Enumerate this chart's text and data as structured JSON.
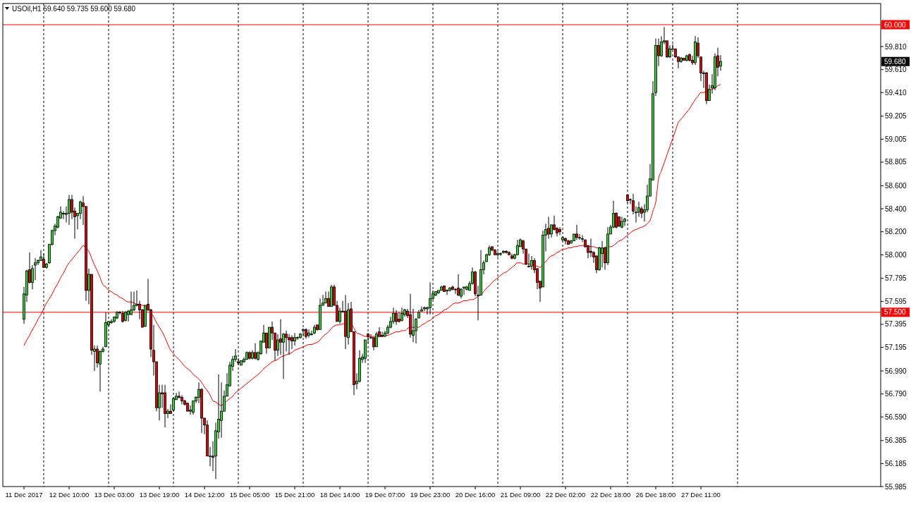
{
  "chart_data": {
    "type": "candlestick",
    "title": "USOil,H1 59.640 59.735 59.600 59.680",
    "categories": [
      "11 Dec 2017",
      null,
      null,
      null,
      null,
      null,
      null,
      null,
      null,
      null,
      null,
      null,
      null,
      null,
      null,
      null,
      "12 Dec 10:00",
      null,
      null,
      null,
      null,
      null,
      null,
      null,
      null,
      null,
      null,
      null,
      null,
      null,
      null,
      null,
      "13 Dec 03:00",
      null,
      null,
      null,
      null,
      null,
      null,
      null,
      null,
      null,
      null,
      null,
      null,
      null,
      null,
      null,
      "13 Dec 19:00",
      null,
      null,
      null,
      null,
      null,
      null,
      null,
      null,
      null,
      null,
      null,
      null,
      null,
      null,
      null,
      "14 Dec 12:00",
      null,
      null,
      null,
      null,
      null,
      null,
      null,
      null,
      null,
      null,
      null,
      null,
      null,
      null,
      null,
      "15 Dec 05:00",
      null,
      null,
      null,
      null,
      null,
      null,
      null,
      null,
      null,
      null,
      null,
      null,
      null,
      null,
      null,
      "15 Dec 21:00",
      null,
      null,
      null,
      null,
      null,
      null,
      null,
      null,
      null,
      null,
      null,
      null,
      null,
      null,
      null,
      "18 Dec 14:00",
      null,
      null,
      null,
      null,
      null,
      null,
      null,
      null,
      null,
      null,
      null,
      null,
      null,
      null,
      null,
      "19 Dec 07:00",
      null,
      null,
      null,
      null,
      null,
      null,
      null,
      null,
      null,
      null,
      null,
      null,
      null,
      null,
      null,
      "19 Dec 23:00",
      null,
      null,
      null,
      null,
      null,
      null,
      null,
      null,
      null,
      null,
      null,
      null,
      null,
      null,
      null,
      "20 Dec 16:00",
      null,
      null,
      null,
      null,
      null,
      null,
      null,
      null,
      null,
      null,
      null,
      null,
      null,
      null,
      null,
      "21 Dec 09:00",
      null,
      null,
      null,
      null,
      null,
      null,
      null,
      null,
      null,
      null,
      null,
      null,
      null,
      null,
      null,
      "22 Dec 02:00",
      null,
      null,
      null,
      null,
      null,
      null,
      null,
      null,
      null,
      null,
      null,
      null,
      null,
      null,
      null,
      "22 Dec 18:00",
      null,
      null,
      null,
      null,
      null,
      null,
      null,
      null,
      null,
      null,
      null,
      null,
      null,
      null,
      null,
      "26 Dec 18:00",
      null,
      null,
      null,
      null,
      null,
      null,
      null,
      null,
      null,
      null,
      null,
      null,
      null,
      null,
      null,
      "27 Dec 11:00",
      null,
      null,
      null,
      null,
      null,
      null,
      null
    ],
    "ohlc": [
      [
        57.44,
        57.72,
        57.4,
        57.66
      ],
      [
        57.65,
        57.87,
        57.59,
        57.86
      ],
      [
        57.87,
        58.02,
        57.75,
        57.76
      ],
      [
        57.76,
        57.91,
        57.7,
        57.88
      ],
      [
        57.91,
        57.97,
        57.78,
        57.93
      ],
      [
        57.93,
        57.96,
        57.91,
        57.95
      ],
      [
        57.95,
        58.04,
        57.95,
        57.98
      ],
      [
        57.96,
        58.01,
        57.89,
        57.89
      ],
      [
        57.89,
        57.93,
        57.88,
        57.92
      ],
      [
        57.93,
        58.09,
        57.92,
        58.09
      ],
      [
        58.09,
        58.22,
        58.08,
        58.21
      ],
      [
        58.21,
        58.27,
        58.17,
        58.25
      ],
      [
        58.24,
        58.34,
        58.23,
        58.33
      ],
      [
        58.32,
        58.42,
        58.31,
        58.37
      ],
      [
        58.36,
        58.38,
        58.31,
        58.36
      ],
      [
        58.35,
        58.42,
        58.28,
        58.36
      ],
      [
        58.36,
        58.52,
        58.26,
        58.48
      ],
      [
        58.48,
        58.52,
        58.31,
        58.37
      ],
      [
        58.38,
        58.41,
        58.14,
        58.33
      ],
      [
        58.34,
        58.36,
        58.22,
        58.36
      ],
      [
        58.36,
        58.47,
        58.31,
        58.46
      ],
      [
        58.45,
        58.51,
        58.26,
        58.42
      ],
      [
        58.42,
        58.42,
        57.6,
        57.69
      ],
      [
        57.69,
        57.88,
        57.57,
        57.83
      ],
      [
        57.83,
        57.83,
        57.13,
        57.17
      ],
      [
        57.16,
        57.21,
        56.99,
        57.18
      ],
      [
        57.18,
        57.21,
        57.02,
        57.06
      ],
      [
        57.05,
        57.17,
        56.81,
        57.16
      ],
      [
        57.16,
        57.2,
        57.15,
        57.18
      ],
      [
        57.2,
        57.5,
        57.2,
        57.41
      ],
      [
        57.39,
        57.42,
        57.38,
        57.42
      ],
      [
        57.41,
        57.44,
        57.4,
        57.42
      ],
      [
        57.42,
        57.46,
        57.41,
        57.46
      ],
      [
        57.45,
        57.51,
        57.44,
        57.5
      ],
      [
        57.5,
        57.51,
        57.48,
        57.5
      ],
      [
        57.49,
        57.51,
        57.41,
        57.42
      ],
      [
        57.43,
        57.51,
        57.42,
        57.5
      ],
      [
        57.48,
        57.52,
        57.42,
        57.51
      ],
      [
        57.48,
        57.68,
        57.48,
        57.52
      ],
      [
        57.52,
        57.68,
        57.51,
        57.56
      ],
      [
        57.56,
        57.69,
        57.55,
        57.57
      ],
      [
        57.57,
        57.6,
        57.44,
        57.52
      ],
      [
        57.52,
        57.53,
        57.37,
        57.37
      ],
      [
        57.38,
        57.56,
        57.37,
        57.56
      ],
      [
        57.57,
        57.79,
        57.51,
        57.52
      ],
      [
        57.52,
        57.53,
        57.11,
        57.18
      ],
      [
        57.17,
        57.39,
        56.95,
        57.07
      ],
      [
        57.07,
        57.07,
        56.64,
        56.67
      ],
      [
        56.67,
        56.87,
        56.56,
        56.8
      ],
      [
        56.8,
        56.87,
        56.67,
        56.79
      ],
      [
        56.8,
        56.87,
        56.5,
        56.62
      ],
      [
        56.62,
        56.66,
        56.58,
        56.64
      ],
      [
        56.64,
        56.7,
        56.62,
        56.62
      ],
      [
        56.65,
        56.76,
        56.64,
        56.75
      ],
      [
        56.74,
        56.8,
        56.74,
        56.77
      ],
      [
        56.77,
        56.81,
        56.75,
        56.76
      ],
      [
        56.76,
        56.78,
        56.7,
        56.73
      ],
      [
        56.73,
        56.74,
        56.69,
        56.7
      ],
      [
        56.71,
        56.71,
        56.64,
        56.64
      ],
      [
        56.64,
        56.69,
        56.61,
        56.65
      ],
      [
        56.63,
        56.73,
        56.61,
        56.73
      ],
      [
        56.73,
        56.77,
        56.71,
        56.76
      ],
      [
        56.76,
        56.89,
        56.71,
        56.83
      ],
      [
        56.83,
        56.84,
        56.45,
        56.58
      ],
      [
        56.58,
        56.58,
        56.44,
        56.52
      ],
      [
        56.52,
        56.56,
        56.25,
        56.25
      ],
      [
        56.25,
        56.33,
        56.16,
        56.25
      ],
      [
        56.25,
        56.38,
        56.12,
        56.24
      ],
      [
        56.25,
        56.54,
        56.05,
        56.47
      ],
      [
        56.46,
        56.96,
        56.4,
        56.57
      ],
      [
        56.56,
        56.89,
        56.41,
        56.64
      ],
      [
        56.64,
        56.82,
        56.64,
        56.77
      ],
      [
        56.77,
        56.97,
        56.77,
        56.87
      ],
      [
        56.86,
        57.07,
        56.86,
        57.04
      ],
      [
        57.03,
        57.12,
        56.99,
        57.09
      ],
      [
        57.09,
        57.18,
        57.07,
        57.12
      ],
      [
        57.07,
        57.1,
        57.04,
        57.06
      ],
      [
        57.04,
        57.08,
        57.04,
        57.08
      ],
      [
        57.07,
        57.11,
        57.06,
        57.09
      ],
      [
        57.09,
        57.16,
        57.09,
        57.15
      ],
      [
        57.15,
        57.16,
        57.09,
        57.1
      ],
      [
        57.1,
        57.17,
        57.09,
        57.15
      ],
      [
        57.15,
        57.23,
        57.09,
        57.1
      ],
      [
        57.09,
        57.16,
        57.08,
        57.15
      ],
      [
        57.14,
        57.25,
        57.13,
        57.25
      ],
      [
        57.24,
        57.39,
        57.24,
        57.32
      ],
      [
        57.32,
        57.32,
        57.14,
        57.19
      ],
      [
        57.19,
        57.37,
        57.19,
        57.37
      ],
      [
        57.37,
        57.42,
        57.26,
        57.32
      ],
      [
        57.32,
        57.32,
        57.08,
        57.17
      ],
      [
        57.17,
        57.31,
        57.12,
        57.26
      ],
      [
        57.27,
        57.44,
        57.13,
        57.24
      ],
      [
        57.24,
        57.32,
        56.92,
        57.31
      ],
      [
        57.31,
        57.34,
        57.16,
        57.28
      ],
      [
        57.28,
        57.31,
        57.13,
        57.26
      ],
      [
        57.28,
        57.3,
        57.18,
        57.25
      ],
      [
        57.25,
        57.32,
        57.21,
        57.28
      ],
      [
        57.28,
        57.29,
        57.26,
        57.28
      ],
      [
        57.28,
        57.32,
        57.27,
        57.31
      ],
      [
        57.34,
        57.36,
        57.29,
        57.35
      ],
      [
        57.35,
        57.36,
        57.27,
        57.29
      ],
      [
        57.3,
        57.35,
        57.28,
        57.32
      ],
      [
        57.31,
        57.34,
        57.3,
        57.31
      ],
      [
        57.32,
        57.39,
        57.31,
        57.37
      ],
      [
        57.39,
        57.39,
        57.34,
        57.35
      ],
      [
        57.35,
        57.62,
        57.35,
        57.56
      ],
      [
        57.56,
        57.65,
        57.56,
        57.58
      ],
      [
        57.58,
        57.68,
        57.58,
        57.62
      ],
      [
        57.62,
        57.68,
        57.55,
        57.55
      ],
      [
        57.55,
        57.74,
        57.55,
        57.72
      ],
      [
        57.72,
        57.74,
        57.56,
        57.56
      ],
      [
        57.56,
        57.6,
        57.42,
        57.42
      ],
      [
        57.42,
        57.54,
        57.4,
        57.51
      ],
      [
        57.51,
        57.6,
        57.5,
        57.51
      ],
      [
        57.51,
        57.65,
        57.18,
        57.29
      ],
      [
        57.28,
        57.58,
        57.22,
        57.52
      ],
      [
        57.53,
        57.59,
        57.33,
        57.33
      ],
      [
        57.33,
        57.33,
        56.78,
        56.87
      ],
      [
        56.88,
        56.97,
        56.83,
        56.9
      ],
      [
        56.9,
        57.17,
        56.89,
        57.1
      ],
      [
        57.09,
        57.14,
        57.06,
        57.11
      ],
      [
        57.1,
        57.26,
        57.06,
        57.26
      ],
      [
        57.31,
        57.32,
        57.23,
        57.29
      ],
      [
        57.28,
        57.31,
        57.27,
        57.28
      ],
      [
        57.28,
        57.28,
        57.17,
        57.2
      ],
      [
        57.2,
        57.33,
        57.2,
        57.31
      ],
      [
        57.33,
        57.37,
        57.29,
        57.29
      ],
      [
        57.3,
        57.33,
        57.29,
        57.29
      ],
      [
        57.29,
        57.34,
        57.29,
        57.32
      ],
      [
        57.32,
        57.39,
        57.31,
        57.37
      ],
      [
        57.37,
        57.46,
        57.36,
        57.42
      ],
      [
        57.42,
        57.54,
        57.4,
        57.49
      ],
      [
        57.49,
        57.52,
        57.39,
        57.42
      ],
      [
        57.44,
        57.5,
        57.41,
        57.42
      ],
      [
        57.43,
        57.54,
        57.42,
        57.49
      ],
      [
        57.48,
        57.53,
        57.46,
        57.52
      ],
      [
        57.51,
        57.53,
        57.45,
        57.47
      ],
      [
        57.48,
        57.66,
        57.28,
        57.31
      ],
      [
        57.3,
        57.53,
        57.24,
        57.34
      ],
      [
        57.34,
        57.45,
        57.23,
        57.44
      ],
      [
        57.45,
        57.52,
        57.45,
        57.5
      ],
      [
        57.51,
        57.55,
        57.51,
        57.52
      ],
      [
        57.53,
        57.55,
        57.51,
        57.54
      ],
      [
        57.53,
        57.55,
        57.48,
        57.54
      ],
      [
        57.54,
        57.76,
        57.48,
        57.62
      ],
      [
        57.62,
        57.69,
        57.61,
        57.66
      ],
      [
        57.65,
        57.68,
        57.64,
        57.68
      ],
      [
        57.67,
        57.69,
        57.66,
        57.69
      ],
      [
        57.69,
        57.73,
        57.69,
        57.72
      ],
      [
        57.73,
        57.73,
        57.68,
        57.68
      ],
      [
        57.69,
        57.7,
        57.65,
        57.69
      ],
      [
        57.69,
        57.72,
        57.68,
        57.71
      ],
      [
        57.72,
        57.73,
        57.69,
        57.7
      ],
      [
        57.7,
        57.71,
        57.66,
        57.7
      ],
      [
        57.71,
        57.83,
        57.64,
        57.65
      ],
      [
        57.64,
        57.71,
        57.62,
        57.7
      ],
      [
        57.71,
        57.72,
        57.65,
        57.72
      ],
      [
        57.7,
        57.73,
        57.69,
        57.72
      ],
      [
        57.69,
        57.77,
        57.69,
        57.75
      ],
      [
        57.75,
        57.89,
        57.74,
        57.85
      ],
      [
        57.85,
        57.86,
        57.64,
        57.66
      ],
      [
        57.65,
        57.73,
        57.43,
        57.65
      ],
      [
        57.65,
        58.04,
        57.65,
        57.87
      ],
      [
        57.87,
        57.95,
        57.83,
        57.93
      ],
      [
        57.94,
        58.01,
        57.94,
        58.0
      ],
      [
        58.0,
        58.08,
        57.99,
        58.06
      ],
      [
        58.07,
        58.07,
        58.03,
        58.04
      ],
      [
        58.04,
        58.05,
        58.0,
        58.0
      ],
      [
        58.0,
        58.03,
        57.98,
        58.01
      ],
      [
        58.01,
        58.02,
        57.99,
        58.01
      ],
      [
        58.02,
        58.04,
        58.01,
        58.03
      ],
      [
        58.03,
        58.04,
        58.01,
        58.02
      ],
      [
        58.02,
        58.03,
        58.0,
        58.0
      ],
      [
        57.99,
        58.01,
        57.96,
        57.97
      ],
      [
        57.97,
        58.01,
        57.96,
        58.0
      ],
      [
        58.0,
        58.13,
        58.0,
        58.08
      ],
      [
        58.07,
        58.14,
        58.07,
        58.13
      ],
      [
        58.12,
        58.13,
        58.01,
        58.05
      ],
      [
        58.05,
        58.05,
        57.91,
        57.92
      ],
      [
        57.9,
        58.01,
        57.89,
        57.9
      ],
      [
        57.9,
        57.99,
        57.87,
        57.95
      ],
      [
        57.95,
        57.97,
        57.84,
        57.87
      ],
      [
        57.88,
        57.88,
        57.7,
        57.76
      ],
      [
        57.77,
        57.77,
        57.59,
        57.71
      ],
      [
        57.72,
        58.21,
        57.72,
        58.17
      ],
      [
        58.17,
        58.27,
        58.03,
        58.22
      ],
      [
        58.23,
        58.33,
        58.14,
        58.18
      ],
      [
        58.18,
        58.26,
        58.15,
        58.26
      ],
      [
        58.26,
        58.34,
        58.21,
        58.22
      ],
      [
        58.23,
        58.24,
        58.16,
        58.19
      ],
      [
        58.22,
        58.24,
        58.17,
        58.2
      ],
      [
        58.13,
        58.16,
        58.12,
        58.15
      ],
      [
        58.14,
        58.15,
        58.09,
        58.12
      ],
      [
        58.12,
        58.13,
        58.09,
        58.09
      ],
      [
        58.1,
        58.13,
        58.1,
        58.12
      ],
      [
        58.12,
        58.18,
        58.12,
        58.18
      ],
      [
        58.18,
        58.26,
        58.13,
        58.15
      ],
      [
        58.15,
        58.18,
        58.13,
        58.15
      ],
      [
        58.14,
        58.17,
        58.11,
        58.14
      ],
      [
        58.13,
        58.13,
        58.06,
        58.07
      ],
      [
        58.08,
        58.08,
        57.97,
        58.02
      ],
      [
        58.03,
        58.14,
        57.98,
        58.02
      ],
      [
        58.02,
        58.03,
        57.93,
        57.98
      ],
      [
        57.99,
        57.99,
        57.84,
        57.87
      ],
      [
        57.87,
        58.07,
        57.86,
        58.06
      ],
      [
        58.01,
        58.12,
        57.89,
        58.06
      ],
      [
        58.06,
        58.07,
        57.87,
        57.93
      ],
      [
        57.93,
        58.24,
        57.91,
        58.18
      ],
      [
        58.18,
        58.26,
        58.18,
        58.24
      ],
      [
        58.24,
        58.47,
        58.23,
        58.36
      ],
      [
        58.36,
        58.37,
        58.23,
        58.24
      ],
      [
        58.33,
        58.33,
        58.24,
        58.25
      ],
      [
        58.24,
        58.33,
        58.23,
        58.29
      ],
      [
        58.29,
        58.32,
        58.25,
        58.31
      ],
      [
        58.52,
        58.52,
        58.45,
        58.47
      ],
      [
        58.48,
        58.49,
        58.44,
        58.48
      ],
      [
        58.47,
        58.53,
        58.35,
        58.38
      ],
      [
        58.37,
        58.42,
        58.28,
        58.37
      ],
      [
        58.37,
        58.46,
        58.33,
        58.41
      ],
      [
        58.4,
        58.42,
        58.32,
        58.36
      ],
      [
        58.37,
        58.44,
        58.29,
        58.39
      ],
      [
        58.39,
        58.61,
        58.37,
        58.51
      ],
      [
        58.51,
        58.79,
        58.51,
        58.66
      ],
      [
        58.65,
        59.51,
        58.65,
        59.4
      ],
      [
        59.41,
        59.88,
        59.38,
        59.82
      ],
      [
        59.82,
        59.88,
        59.64,
        59.73
      ],
      [
        59.73,
        59.9,
        59.72,
        59.85
      ],
      [
        59.85,
        59.98,
        59.83,
        59.86
      ],
      [
        59.86,
        59.86,
        59.71,
        59.72
      ],
      [
        59.72,
        59.82,
        59.71,
        59.79
      ],
      [
        59.79,
        59.83,
        59.79,
        59.79
      ],
      [
        59.79,
        59.79,
        59.71,
        59.72
      ],
      [
        59.72,
        59.72,
        59.62,
        59.68
      ],
      [
        59.68,
        59.72,
        59.67,
        59.71
      ],
      [
        59.71,
        59.71,
        59.69,
        59.69
      ],
      [
        59.69,
        59.74,
        59.68,
        59.73
      ],
      [
        59.74,
        59.75,
        59.68,
        59.69
      ],
      [
        59.69,
        59.73,
        59.65,
        59.67
      ],
      [
        59.67,
        59.9,
        59.65,
        59.85
      ],
      [
        59.84,
        59.89,
        59.71,
        59.73
      ],
      [
        59.72,
        59.72,
        59.51,
        59.58
      ],
      [
        59.58,
        59.6,
        59.45,
        59.58
      ],
      [
        59.58,
        59.59,
        59.31,
        59.34
      ],
      [
        59.34,
        59.48,
        59.34,
        59.44
      ],
      [
        59.45,
        59.57,
        59.4,
        59.47
      ],
      [
        59.45,
        59.75,
        59.43,
        59.72
      ],
      [
        59.73,
        59.8,
        59.55,
        59.63
      ],
      [
        59.64,
        59.735,
        59.6,
        59.68
      ]
    ],
    "series": [
      {
        "type": "line",
        "color": "#ff0000",
        "values": [
          57.21,
          57.26,
          57.3,
          57.35,
          57.39,
          57.44,
          57.48,
          57.53,
          57.58,
          57.62,
          57.66,
          57.71,
          57.75,
          57.8,
          57.84,
          57.89,
          57.93,
          57.96,
          57.99,
          58.02,
          58.05,
          58.08,
          58.06,
          58.03,
          57.97,
          57.91,
          57.86,
          57.8,
          57.74,
          57.72,
          57.69,
          57.68,
          57.66,
          57.65,
          57.63,
          57.62,
          57.6,
          57.59,
          57.59,
          57.58,
          57.57,
          57.57,
          57.56,
          57.56,
          57.55,
          57.5,
          57.46,
          57.41,
          57.37,
          57.33,
          57.28,
          57.22,
          57.17,
          57.14,
          57.11,
          57.09,
          57.06,
          57.03,
          57.01,
          56.99,
          56.96,
          56.94,
          56.92,
          56.89,
          56.85,
          56.82,
          56.78,
          56.73,
          56.72,
          56.7,
          56.69,
          56.71,
          56.73,
          56.75,
          56.77,
          56.8,
          56.82,
          56.84,
          56.86,
          56.88,
          56.9,
          56.92,
          56.94,
          56.96,
          56.98,
          57.01,
          57.03,
          57.05,
          57.07,
          57.08,
          57.09,
          57.11,
          57.12,
          57.13,
          57.14,
          57.15,
          57.17,
          57.18,
          57.19,
          57.2,
          57.21,
          57.22,
          57.22,
          57.23,
          57.24,
          57.26,
          57.29,
          57.31,
          57.33,
          57.36,
          57.38,
          57.39,
          57.39,
          57.4,
          57.4,
          57.4,
          57.4,
          57.36,
          57.32,
          57.31,
          57.3,
          57.29,
          57.29,
          57.29,
          57.29,
          57.29,
          57.29,
          57.29,
          57.3,
          57.3,
          57.31,
          57.32,
          57.33,
          57.33,
          57.34,
          57.34,
          57.36,
          57.37,
          57.37,
          57.37,
          57.37,
          57.39,
          57.4,
          57.42,
          57.43,
          57.45,
          57.47,
          57.48,
          57.5,
          57.52,
          57.53,
          57.55,
          57.57,
          57.58,
          57.58,
          57.59,
          57.6,
          57.6,
          57.61,
          57.61,
          57.62,
          57.64,
          57.65,
          57.68,
          57.71,
          57.73,
          57.76,
          57.78,
          57.8,
          57.82,
          57.84,
          57.85,
          57.87,
          57.89,
          57.91,
          57.93,
          57.93,
          57.92,
          57.92,
          57.92,
          57.92,
          57.91,
          57.9,
          57.89,
          57.92,
          57.94,
          57.97,
          57.99,
          58.0,
          58.02,
          58.03,
          58.05,
          58.05,
          58.06,
          58.06,
          58.07,
          58.07,
          58.08,
          58.08,
          58.08,
          58.08,
          58.07,
          58.07,
          58.06,
          58.06,
          58.05,
          58.06,
          58.07,
          58.07,
          58.08,
          58.1,
          58.12,
          58.13,
          58.15,
          58.17,
          58.19,
          58.21,
          58.22,
          58.23,
          58.24,
          58.25,
          58.27,
          58.3,
          58.38,
          58.46,
          58.66,
          58.73,
          58.8,
          58.87,
          58.94,
          59.01,
          59.08,
          59.15,
          59.18,
          59.21,
          59.24,
          59.27,
          59.31,
          59.35,
          59.38,
          59.41,
          59.41,
          59.42,
          59.42,
          59.44,
          59.45,
          59.47,
          59.48
        ]
      }
    ],
    "ylim": [
      55.985,
      60.184
    ],
    "yticks": [
      {
        "value": 59.81,
        "label": "59.810"
      },
      {
        "value": 59.61,
        "label": "59.610"
      },
      {
        "value": 59.41,
        "label": "59.410"
      },
      {
        "value": 59.205,
        "label": "59.205"
      },
      {
        "value": 59.005,
        "label": "59.005"
      },
      {
        "value": 58.805,
        "label": "58.805"
      },
      {
        "value": 58.6,
        "label": "58.600"
      },
      {
        "value": 58.4,
        "label": "58.400"
      },
      {
        "value": 58.2,
        "label": "58.200"
      },
      {
        "value": 58,
        "label": "58.000"
      },
      {
        "value": 57.795,
        "label": "57.795"
      },
      {
        "value": 57.595,
        "label": "57.595"
      },
      {
        "value": 57.395,
        "label": "57.395"
      },
      {
        "value": 57.195,
        "label": "57.195"
      },
      {
        "value": 56.99,
        "label": "56.990"
      },
      {
        "value": 56.79,
        "label": "56.790"
      },
      {
        "value": 56.59,
        "label": "56.590"
      },
      {
        "value": 56.385,
        "label": "56.385"
      },
      {
        "value": 56.185,
        "label": "56.185"
      },
      {
        "value": 55.985,
        "label": "55.985"
      }
    ],
    "ref_lines": [
      {
        "axis": "y",
        "value": 60,
        "label": "60.000",
        "color": "#ff0000"
      },
      {
        "axis": "y",
        "value": 57.5,
        "label": "57.500",
        "color": "#ff0000"
      }
    ],
    "annotations": [
      "59.680"
    ]
  }
}
